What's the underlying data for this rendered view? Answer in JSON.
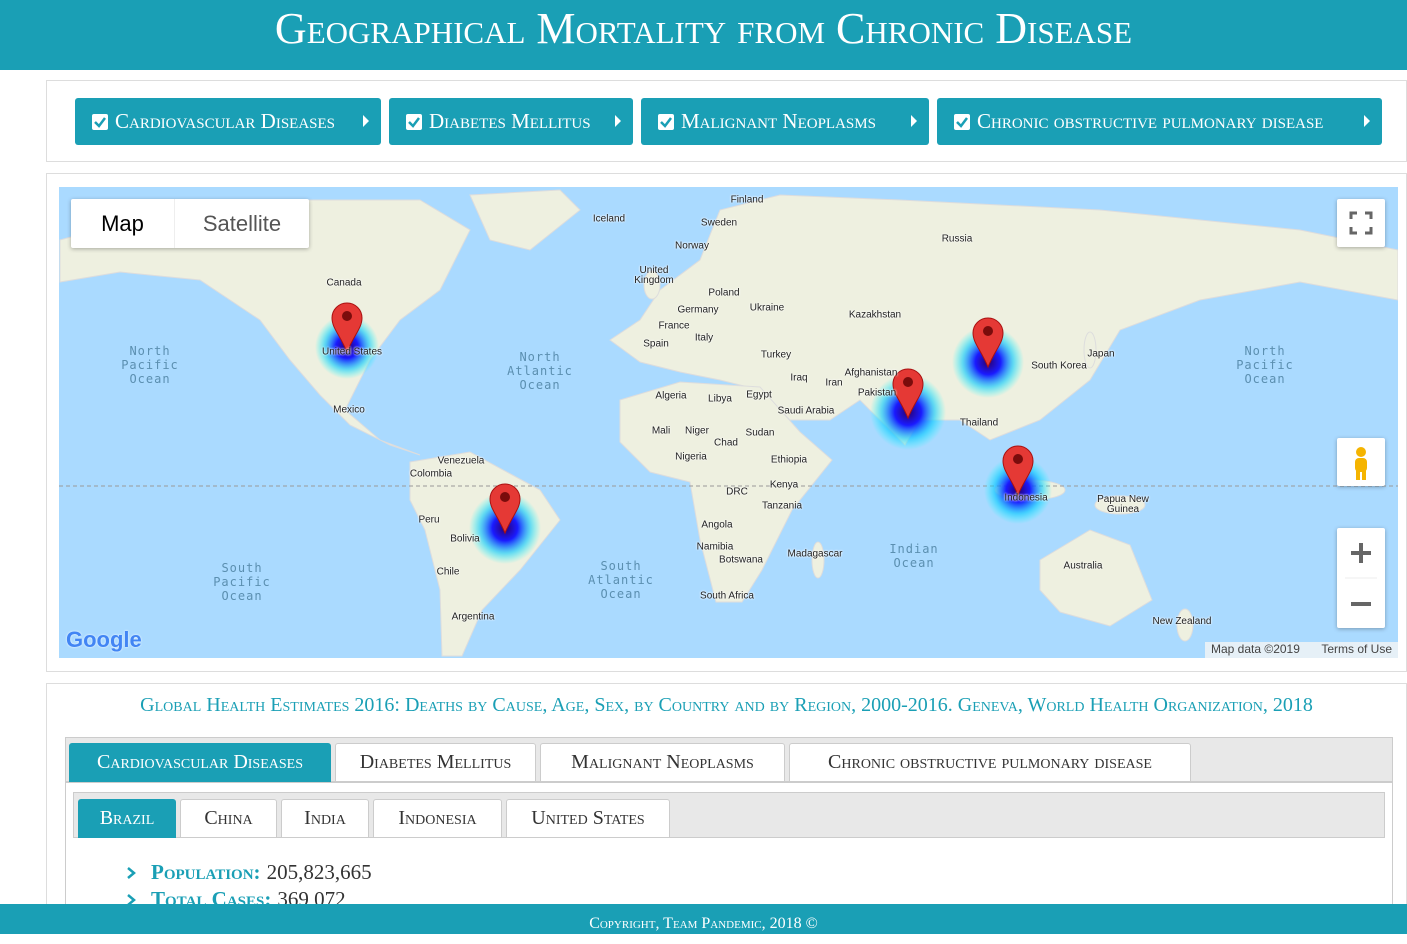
{
  "header": {
    "title": "Geographical Mortality from Chronic Disease"
  },
  "filters": [
    "Cardiovascular Diseases",
    "Diabetes Mellitus",
    "Malignant Neoplasms",
    "Chronic obstructive pulmonary disease"
  ],
  "map": {
    "type_buttons": [
      "Map",
      "Satellite"
    ],
    "labels": [
      "Finland",
      "Sweden",
      "Iceland",
      "Norway",
      "Russia",
      "United Kingdom",
      "Canada",
      "Poland",
      "Germany",
      "Ukraine",
      "Kazakhstan",
      "France",
      "Italy",
      "Spain",
      "Turkey",
      "Japan",
      "South Korea",
      "Iraq",
      "Iran",
      "Afghanistan",
      "Pakistan",
      "Algeria",
      "Libya",
      "Egypt",
      "Saudi Arabia",
      "Mexico",
      "Thailand",
      "Mali",
      "Niger",
      "Chad",
      "Sudan",
      "Venezuela",
      "Colombia",
      "Nigeria",
      "Ethiopia",
      "Kenya",
      "DRC",
      "Tanzania",
      "Papua New Guinea",
      "Peru",
      "Bolivia",
      "Angola",
      "Namibia",
      "Botswana",
      "Madagascar",
      "Australia",
      "Chile",
      "South Africa",
      "Argentina",
      "New Zealand",
      "United States",
      "Indonesia"
    ],
    "oceans": [
      "North Pacific Ocean",
      "North Atlantic Ocean",
      "South Atlantic Ocean",
      "South Pacific Ocean",
      "Indian Ocean",
      "North Pacific Ocean"
    ],
    "logo": "Google",
    "attribution": "Map data ©2019",
    "terms": "Terms of Use"
  },
  "source": "Global Health Estimates 2016: Deaths by Cause, Age, Sex, by Country and by Region, 2000-2016. Geneva, World Health Organization, 2018",
  "disease_tabs": [
    "Cardiovascular Diseases",
    "Diabetes Mellitus",
    "Malignant Neoplasms",
    "Chronic obstructive pulmonary disease"
  ],
  "country_tabs": [
    "Brazil",
    "China",
    "India",
    "Indonesia",
    "United States"
  ],
  "details": [
    {
      "label": "Population:",
      "value": "205,823,665"
    },
    {
      "label": "Total Cases:",
      "value": "369,072"
    }
  ],
  "footer": "Copyright, Team Pandemic, 2018 ©"
}
